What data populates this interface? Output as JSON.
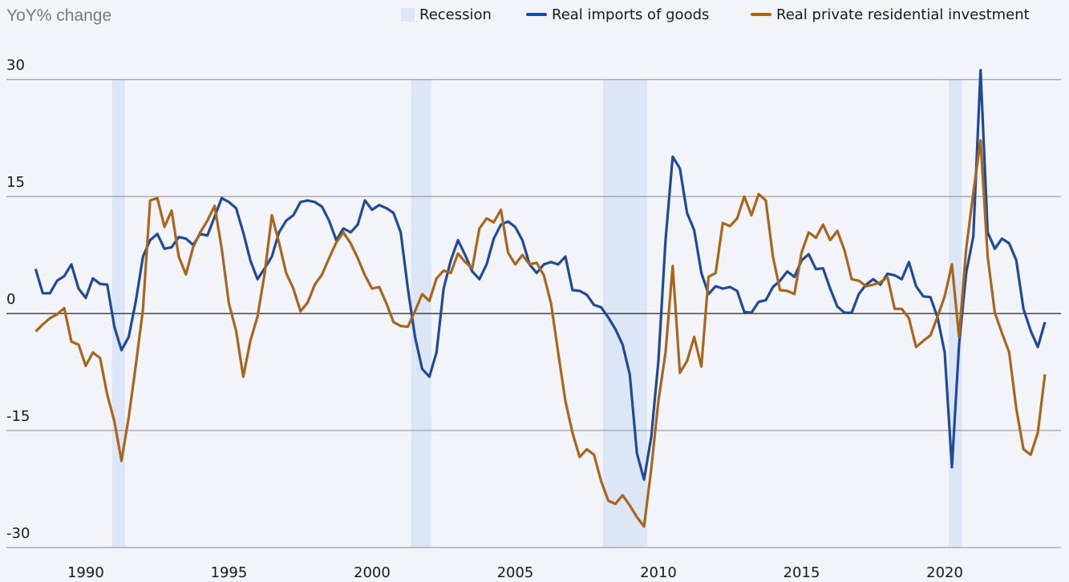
{
  "chart_data": {
    "type": "line",
    "title": "YoY% change",
    "recession_label": "Recession",
    "recession_color": "#dde6f6",
    "recessions": [
      [
        1990.92,
        1991.37
      ],
      [
        2001.37,
        2002.07
      ],
      [
        2008.07,
        2009.61
      ],
      [
        2020.14,
        2020.6
      ]
    ],
    "x": [
      1988.25,
      1988.5,
      1988.75,
      1989,
      1989.25,
      1989.5,
      1989.75,
      1990,
      1990.25,
      1990.5,
      1990.75,
      1991,
      1991.25,
      1991.5,
      1991.75,
      1992,
      1992.25,
      1992.5,
      1992.75,
      1993,
      1993.25,
      1993.5,
      1993.75,
      1994,
      1994.25,
      1994.5,
      1994.75,
      1995,
      1995.25,
      1995.5,
      1995.75,
      1996,
      1996.25,
      1996.5,
      1996.75,
      1997,
      1997.25,
      1997.5,
      1997.75,
      1998,
      1998.25,
      1998.5,
      1998.75,
      1999,
      1999.25,
      1999.5,
      1999.75,
      2000,
      2000.25,
      2000.5,
      2000.75,
      2001,
      2001.25,
      2001.5,
      2001.75,
      2002,
      2002.25,
      2002.5,
      2002.75,
      2003,
      2003.25,
      2003.5,
      2003.75,
      2004,
      2004.25,
      2004.5,
      2004.75,
      2005,
      2005.25,
      2005.5,
      2005.75,
      2006,
      2006.25,
      2006.5,
      2006.75,
      2007,
      2007.25,
      2007.5,
      2007.75,
      2008,
      2008.25,
      2008.5,
      2008.75,
      2009,
      2009.25,
      2009.5,
      2009.75,
      2010,
      2010.25,
      2010.5,
      2010.75,
      2011,
      2011.25,
      2011.5,
      2011.75,
      2012,
      2012.25,
      2012.5,
      2012.75,
      2013,
      2013.25,
      2013.5,
      2013.75,
      2014,
      2014.25,
      2014.5,
      2014.75,
      2015,
      2015.25,
      2015.5,
      2015.75,
      2016,
      2016.25,
      2016.5,
      2016.75,
      2017,
      2017.25,
      2017.5,
      2017.75,
      2018,
      2018.25,
      2018.5,
      2018.75,
      2019,
      2019.25,
      2019.5,
      2019.75,
      2020,
      2020.25,
      2020.5,
      2020.75,
      2021,
      2021.25,
      2021.5,
      2021.75,
      2022,
      2022.25,
      2022.5,
      2022.75,
      2023,
      2023.25,
      2023.5
    ],
    "series": [
      {
        "name": "Real imports of goods",
        "color": "#1f4a9a",
        "values": [
          5.7,
          2.6,
          2.6,
          4.2,
          4.8,
          6.3,
          3.2,
          2.0,
          4.5,
          3.8,
          3.7,
          -1.7,
          -4.7,
          -3.0,
          1.6,
          7.3,
          9.4,
          10.2,
          8.3,
          8.5,
          9.8,
          9.6,
          8.8,
          10.2,
          10.0,
          12.4,
          14.8,
          14.3,
          13.5,
          10.4,
          6.8,
          4.4,
          5.8,
          7.3,
          10.4,
          11.9,
          12.6,
          14.3,
          14.5,
          14.3,
          13.7,
          11.9,
          9.4,
          10.9,
          10.4,
          11.4,
          14.5,
          13.3,
          13.9,
          13.5,
          12.9,
          10.4,
          3.2,
          -3.0,
          -7.1,
          -8.1,
          -5.0,
          3.2,
          6.8,
          9.4,
          7.5,
          5.4,
          4.4,
          6.3,
          9.6,
          11.4,
          11.8,
          11.1,
          9.4,
          6.3,
          5.2,
          6.3,
          6.6,
          6.3,
          7.3,
          3.0,
          2.9,
          2.4,
          1.1,
          0.8,
          -0.5,
          -2.0,
          -4.0,
          -7.8,
          -17.9,
          -21.3,
          -15.8,
          -6.1,
          9.4,
          20.1,
          18.6,
          12.9,
          10.7,
          5.2,
          2.5,
          3.5,
          3.2,
          3.4,
          2.9,
          0.2,
          0.1,
          1.5,
          1.7,
          3.4,
          4.2,
          5.4,
          4.7,
          6.8,
          7.6,
          5.7,
          5.8,
          3.2,
          0.9,
          0.1,
          0.1,
          2.5,
          3.7,
          4.4,
          3.7,
          5.1,
          4.9,
          4.4,
          6.6,
          3.5,
          2.2,
          2.1,
          -0.5,
          -5.0,
          -19.7,
          -4.0,
          5.2,
          9.9,
          31.2,
          10.4,
          8.3,
          9.6,
          9.0,
          6.8,
          0.6,
          -2.2,
          -4.3,
          -1.1
        ]
      },
      {
        "name": "Real private residential investment",
        "color": "#a8651c",
        "values": [
          -2.3,
          -1.4,
          -0.6,
          -0.1,
          0.7,
          -3.6,
          -4.0,
          -6.7,
          -5.0,
          -5.7,
          -10.4,
          -13.8,
          -18.9,
          -13.3,
          -6.6,
          0.6,
          14.5,
          14.8,
          11.1,
          13.2,
          7.3,
          5.0,
          8.5,
          10.4,
          11.9,
          13.8,
          8.3,
          1.3,
          -2.2,
          -8.1,
          -3.5,
          -0.4,
          5.2,
          12.6,
          9.1,
          5.2,
          3.2,
          0.3,
          1.4,
          3.7,
          5.0,
          7.1,
          9.1,
          10.4,
          9.0,
          7.1,
          4.9,
          3.2,
          3.4,
          1.3,
          -1.1,
          -1.6,
          -1.7,
          0.3,
          2.5,
          1.6,
          4.5,
          5.5,
          5.2,
          7.7,
          6.6,
          5.8,
          10.9,
          12.2,
          11.7,
          13.3,
          7.8,
          6.3,
          7.5,
          6.3,
          6.5,
          4.9,
          1.3,
          -5.0,
          -11.2,
          -15.3,
          -18.4,
          -17.4,
          -18.1,
          -21.5,
          -24.0,
          -24.4,
          -23.3,
          -24.6,
          -26.1,
          -27.3,
          -19.9,
          -11.2,
          -5.0,
          6.1,
          -7.6,
          -6.1,
          -3.0,
          -6.8,
          4.7,
          5.2,
          11.6,
          11.2,
          12.2,
          15.0,
          12.6,
          15.3,
          14.5,
          7.3,
          3.0,
          2.9,
          2.5,
          7.8,
          10.4,
          9.7,
          11.4,
          9.4,
          10.6,
          8.1,
          4.4,
          4.2,
          3.5,
          3.7,
          4.0,
          4.7,
          0.6,
          0.6,
          -0.6,
          -4.3,
          -3.5,
          -2.8,
          -0.4,
          2.2,
          6.3,
          -3.0,
          8.3,
          15.5,
          22.2,
          7.3,
          0.1,
          -2.5,
          -5.0,
          -12.2,
          -17.4,
          -18.1,
          -15.3,
          -7.8
        ]
      }
    ],
    "xlim": [
      1987.23,
      2024.06
    ],
    "xticks": [
      1990,
      1995,
      2000,
      2005,
      2010,
      2015,
      2020
    ],
    "ylim": [
      -30,
      33
    ],
    "yticks": [
      -30,
      -15,
      0,
      15,
      30
    ],
    "grid": true
  }
}
